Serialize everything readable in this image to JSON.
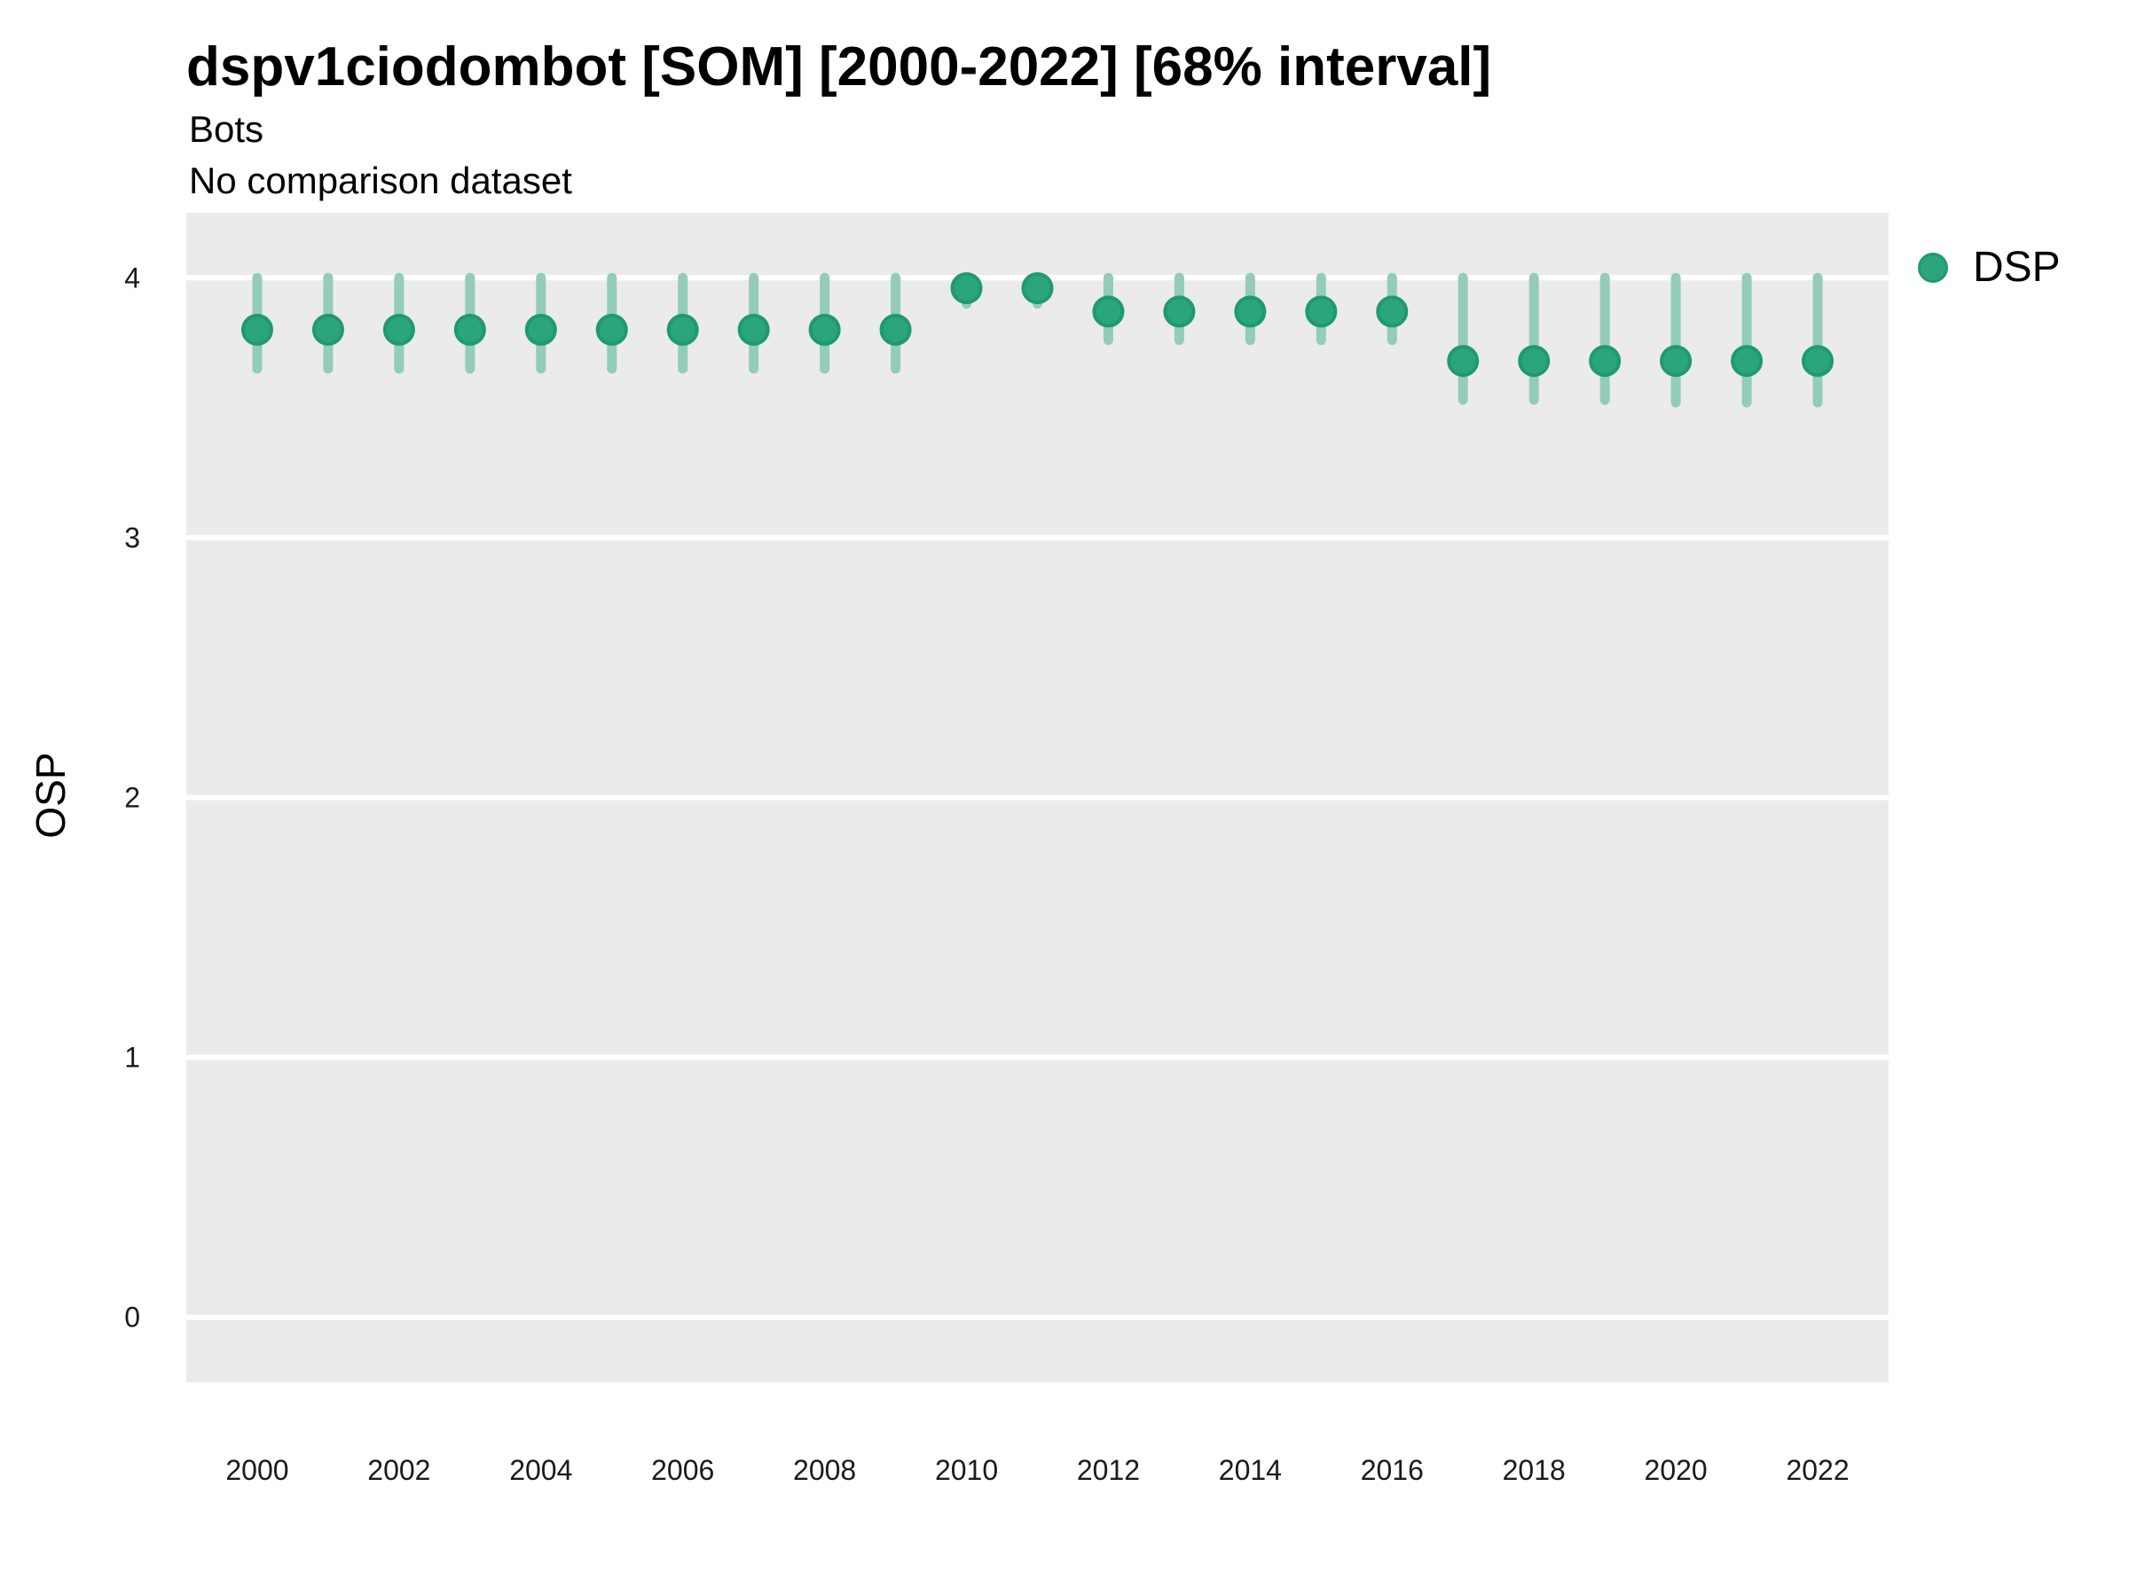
{
  "header": {
    "title": "dspv1ciodombot [SOM] [2000-2022] [68% interval]",
    "subtitle": "Bots",
    "comparison_note": "No comparison dataset"
  },
  "y_axis_label": "OSP",
  "legend": {
    "position": "right",
    "items": [
      {
        "label": "DSP",
        "color": "#2aa57c"
      }
    ]
  },
  "colors": {
    "page_background": "#ffffff",
    "panel_background": "#ebebeb",
    "gridline": "#ffffff",
    "point_fill": "#2aa57c",
    "point_stroke": "#1f9a70",
    "interval_bar": "#93ccb8",
    "tick_label": "#1a1a1a"
  },
  "chart_data": {
    "type": "pointrange",
    "title": "dspv1ciodombot [SOM] [2000-2022] [68% interval]",
    "subtitle": "Bots",
    "note": "No comparison dataset",
    "interval": "68%",
    "xlabel": "",
    "ylabel": "OSP",
    "grid": "major-horizontal",
    "legend_position": "right",
    "xlim": [
      1999,
      2023
    ],
    "ylim": [
      -0.25,
      4.25
    ],
    "xticks": [
      2000,
      2002,
      2004,
      2006,
      2008,
      2010,
      2012,
      2014,
      2016,
      2018,
      2020,
      2022
    ],
    "yticks": [
      0,
      1,
      2,
      3,
      4
    ],
    "series": [
      {
        "name": "DSP",
        "x": [
          2000,
          2001,
          2002,
          2003,
          2004,
          2005,
          2006,
          2007,
          2008,
          2009,
          2010,
          2011,
          2012,
          2013,
          2014,
          2015,
          2016,
          2017,
          2018,
          2019,
          2020,
          2021,
          2022
        ],
        "y": [
          3.8,
          3.8,
          3.8,
          3.8,
          3.8,
          3.8,
          3.8,
          3.8,
          3.8,
          3.8,
          3.96,
          3.96,
          3.87,
          3.87,
          3.87,
          3.87,
          3.87,
          3.68,
          3.68,
          3.68,
          3.68,
          3.68,
          3.68
        ],
        "lo": [
          3.65,
          3.65,
          3.65,
          3.65,
          3.65,
          3.65,
          3.65,
          3.65,
          3.65,
          3.65,
          3.9,
          3.9,
          3.76,
          3.76,
          3.76,
          3.76,
          3.76,
          3.53,
          3.53,
          3.53,
          3.52,
          3.52,
          3.52
        ],
        "hi": [
          4.0,
          4.0,
          4.0,
          4.0,
          4.0,
          4.0,
          4.0,
          4.0,
          4.0,
          4.0,
          4.0,
          4.0,
          4.0,
          4.0,
          4.0,
          4.0,
          4.0,
          4.0,
          4.0,
          4.0,
          4.0,
          4.0,
          4.0
        ]
      }
    ]
  }
}
